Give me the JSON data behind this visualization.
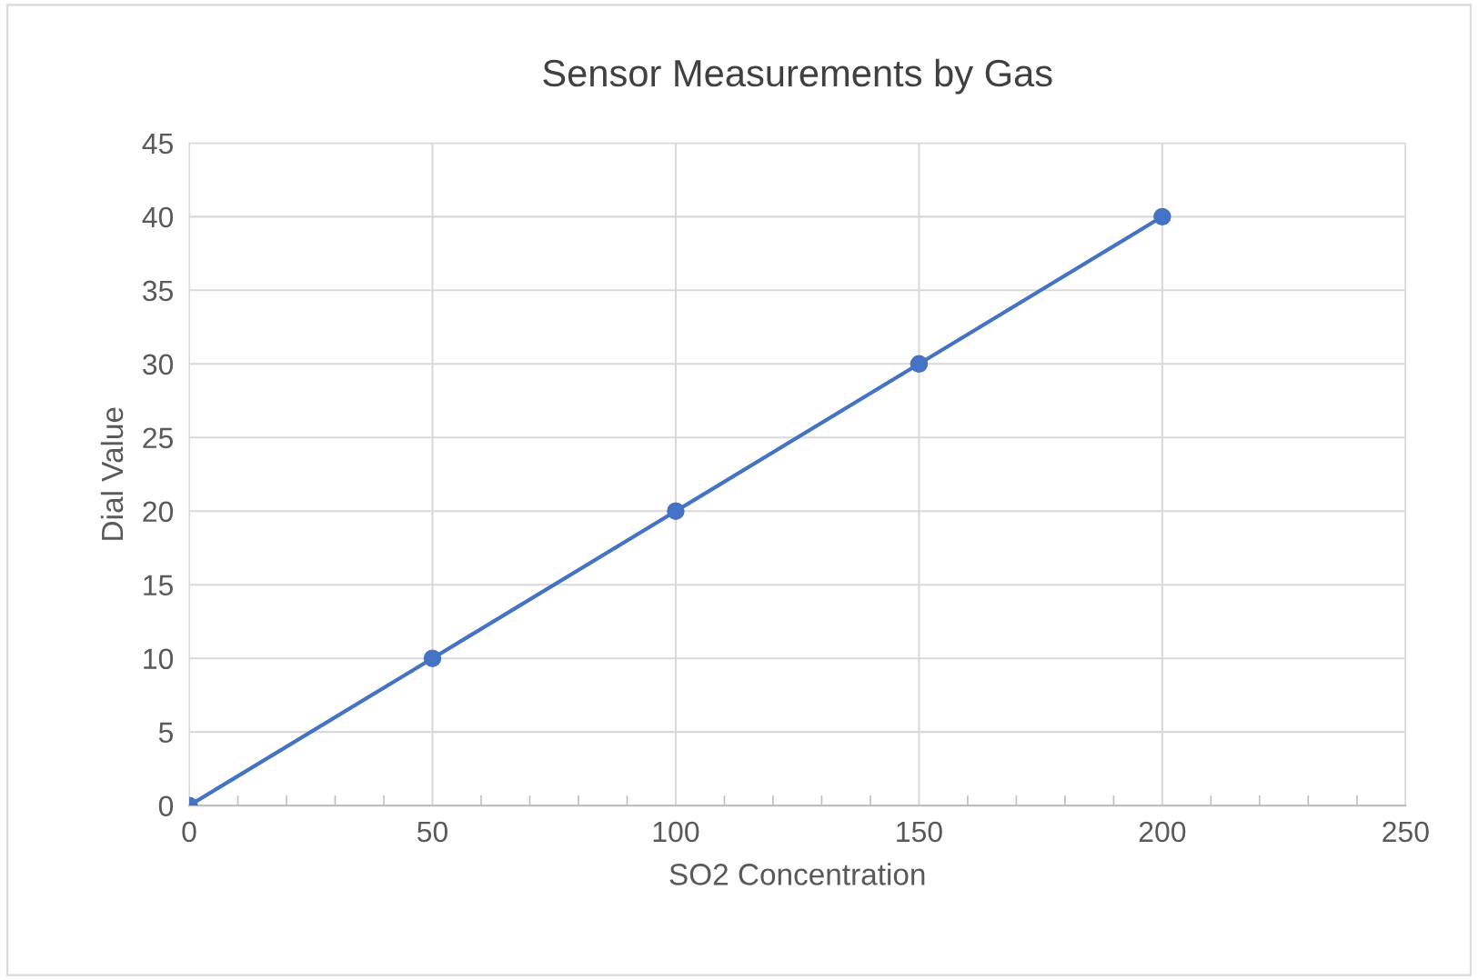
{
  "chart_data": {
    "type": "line",
    "title": "Sensor Measurements by Gas",
    "xlabel": "SO2 Concentration",
    "ylabel": "Dial Value",
    "x": [
      0,
      50,
      100,
      150,
      200
    ],
    "series": [
      {
        "color": "#4472c4",
        "values": [
          0,
          10,
          20,
          30,
          40
        ]
      }
    ],
    "xlim": [
      0,
      250
    ],
    "xticks": [
      0,
      50,
      100,
      150,
      200,
      250
    ],
    "ylim": [
      0,
      45
    ],
    "yticks": [
      0,
      5,
      10,
      15,
      20,
      25,
      30,
      35,
      40,
      45
    ],
    "grid": true,
    "marker": "circle",
    "line_style": "solid",
    "legend": false
  }
}
